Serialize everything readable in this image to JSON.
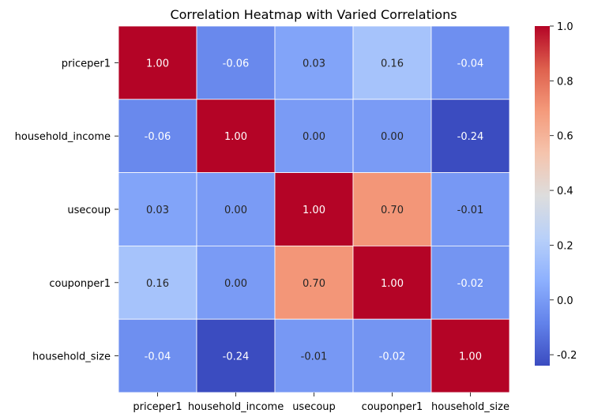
{
  "chart_data": {
    "type": "heatmap",
    "title": "Correlation Heatmap with Varied Correlations",
    "rows": [
      "priceper1",
      "household_income",
      "usecoup",
      "couponper1",
      "household_size"
    ],
    "columns": [
      "priceper1",
      "household_income",
      "usecoup",
      "couponper1",
      "household_size"
    ],
    "values": [
      [
        1.0,
        -0.06,
        0.03,
        0.16,
        -0.04
      ],
      [
        -0.06,
        1.0,
        -0.0,
        0.0,
        -0.24
      ],
      [
        0.03,
        -0.0,
        1.0,
        0.7,
        -0.01
      ],
      [
        0.16,
        0.0,
        0.7,
        1.0,
        -0.02
      ],
      [
        -0.04,
        -0.24,
        -0.01,
        -0.02,
        1.0
      ]
    ],
    "value_format": "2 decimals",
    "colormap": "coolwarm",
    "color_range": [
      -0.24,
      1.0
    ],
    "colorbar_ticks": [
      "1.0",
      "0.8",
      "0.6",
      "0.4",
      "0.2",
      "0.0",
      "-0.2"
    ],
    "grid_line_color": "#ffffff"
  }
}
